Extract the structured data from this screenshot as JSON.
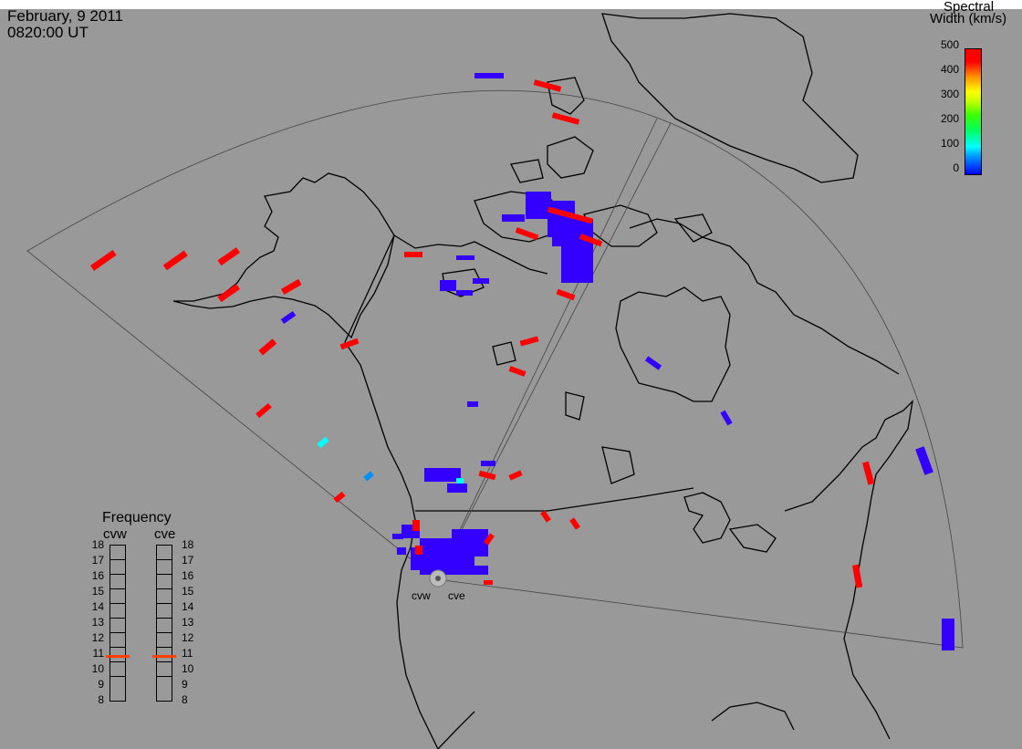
{
  "header": {
    "date": "February, 9 2011",
    "time": "0820:00 UT"
  },
  "colorbar": {
    "title_line1": "Spectral",
    "title_line2": "Width (km/s)",
    "ticks": [
      "500",
      "400",
      "300",
      "200",
      "100",
      "0"
    ],
    "colors": [
      "#0000ff",
      "#00ffff",
      "#00ff00",
      "#ffff00",
      "#ff9000",
      "#ff0000"
    ]
  },
  "frequency": {
    "title": "Frequency",
    "radars": [
      "cvw",
      "cve"
    ],
    "ticks": [
      "18",
      "17",
      "16",
      "15",
      "14",
      "13",
      "12",
      "11",
      "10",
      "9",
      "8"
    ],
    "current_mhz": {
      "cvw": 10.8,
      "cve": 10.8
    }
  },
  "sites": {
    "west_label": "cvw",
    "east_label": "cve"
  },
  "colors": {
    "background": "#999999",
    "low_width": "#3300ff",
    "high_width": "#ff0000",
    "mid_width": "#00ffff",
    "marker": "#ff4000"
  }
}
